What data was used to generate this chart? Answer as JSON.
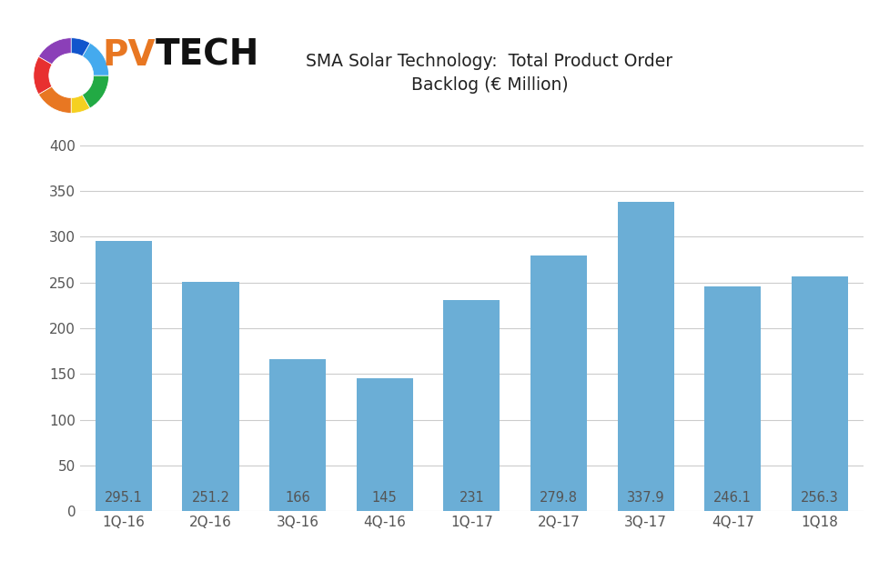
{
  "categories": [
    "1Q-16",
    "2Q-16",
    "3Q-16",
    "4Q-16",
    "1Q-17",
    "2Q-17",
    "3Q-17",
    "4Q-17",
    "1Q18"
  ],
  "values": [
    295.1,
    251.2,
    166,
    145,
    231,
    279.8,
    337.9,
    246.1,
    256.3
  ],
  "bar_color": "#6baed6",
  "title_line1": "SMA Solar Technology:  Total Product Order",
  "title_line2": "Backlog (€ Million)",
  "ylabel": "",
  "xlabel": "",
  "ylim": [
    0,
    400
  ],
  "yticks": [
    0,
    50,
    100,
    150,
    200,
    250,
    300,
    350,
    400
  ],
  "label_color": "#555555",
  "label_fontsize": 10.5,
  "title_fontsize": 13.5,
  "tick_fontsize": 11,
  "background_color": "#ffffff",
  "grid_color": "#cccccc",
  "bar_width": 0.65,
  "logo_pv_color": "#e87722",
  "logo_tech_color": "#111111",
  "logo_fontsize": 28
}
